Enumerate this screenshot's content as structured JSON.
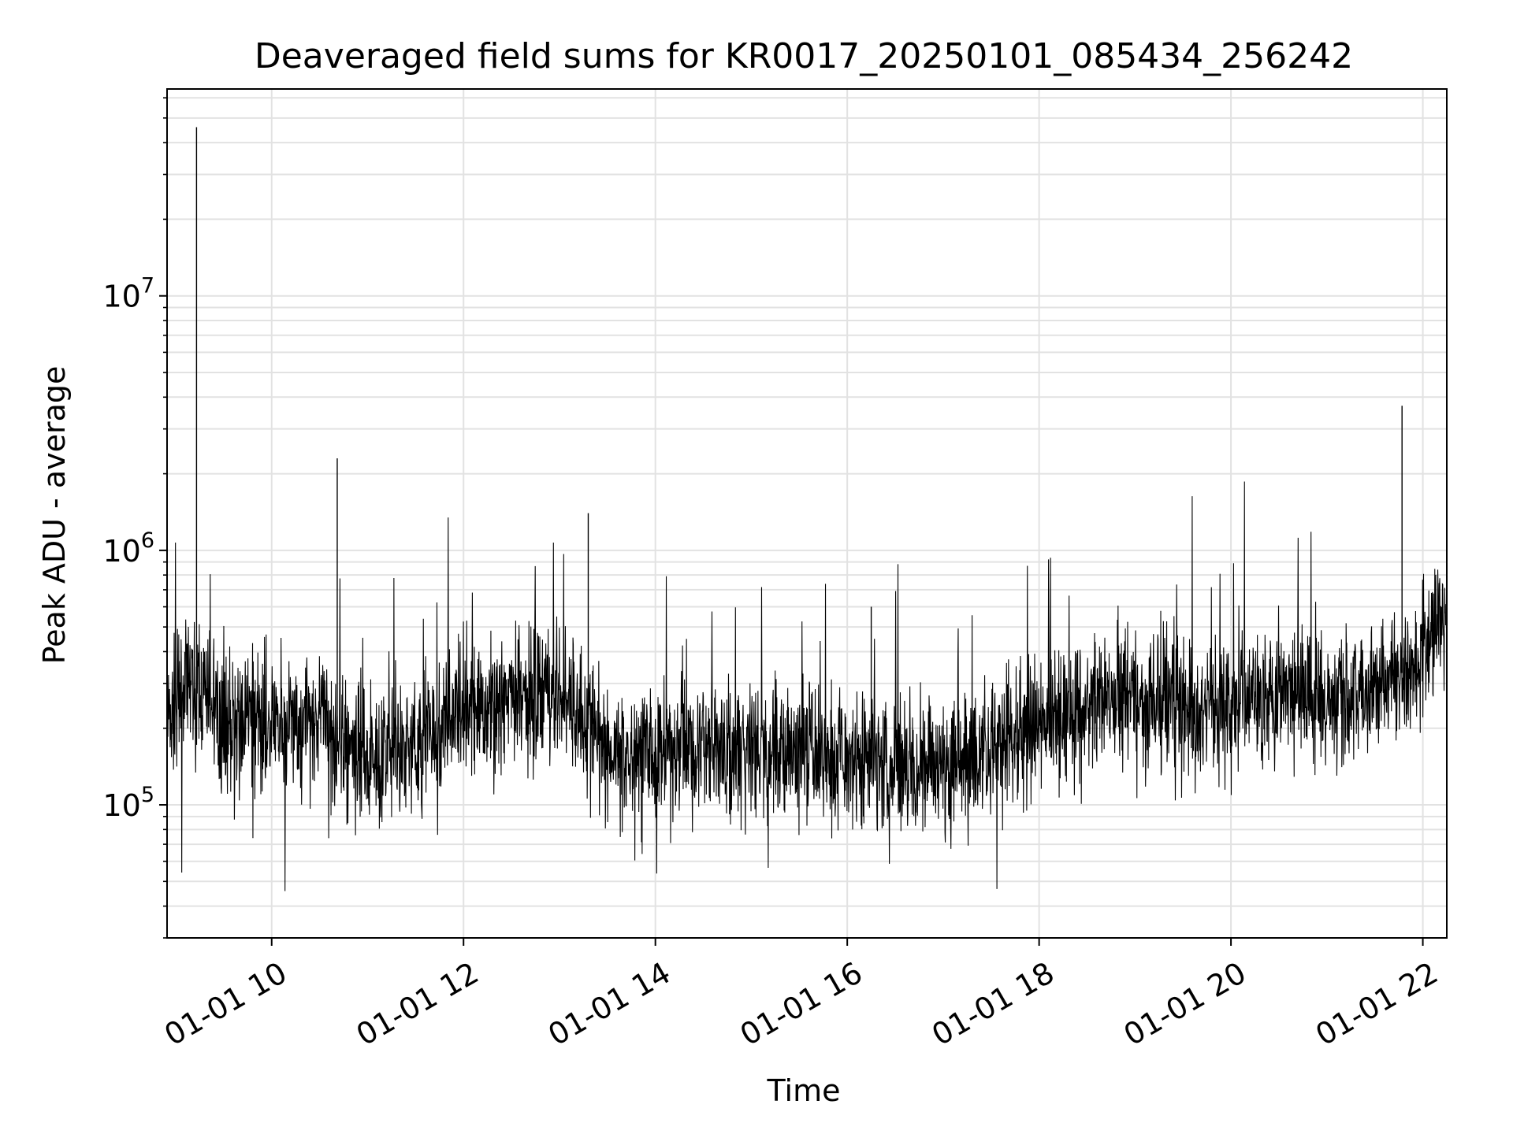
{
  "chart_data": {
    "type": "line",
    "title": "Deaveraged field sums for KR0017_20250101_085434_256242",
    "xlabel": "Time",
    "ylabel": "Peak ADU - average",
    "x_range": [
      "2025-01-01T08:54:34",
      "2025-01-01T22:15:00"
    ],
    "y_range": [
      30000,
      65000000
    ],
    "y_scale": "log",
    "grid": true,
    "line_color": "#000000",
    "x_ticks": [
      {
        "value": "2025-01-01T10:00:00",
        "label": "01-01 10"
      },
      {
        "value": "2025-01-01T12:00:00",
        "label": "01-01 12"
      },
      {
        "value": "2025-01-01T14:00:00",
        "label": "01-01 14"
      },
      {
        "value": "2025-01-01T16:00:00",
        "label": "01-01 16"
      },
      {
        "value": "2025-01-01T18:00:00",
        "label": "01-01 18"
      },
      {
        "value": "2025-01-01T20:00:00",
        "label": "01-01 20"
      },
      {
        "value": "2025-01-01T22:00:00",
        "label": "01-01 22"
      }
    ],
    "y_ticks": [
      {
        "value": 100000,
        "base": "10",
        "exp": "5"
      },
      {
        "value": 1000000,
        "base": "10",
        "exp": "6"
      },
      {
        "value": 10000000,
        "base": "10",
        "exp": "7"
      }
    ],
    "series": [
      {
        "x": [
          "2025-01-01T08:55:00",
          "2025-01-01T09:05:00",
          "2025-01-01T09:12:00",
          "2025-01-01T09:13:00",
          "2025-01-01T09:14:00",
          "2025-01-01T09:30:00",
          "2025-01-01T10:00:00",
          "2025-01-01T10:30:00",
          "2025-01-01T10:40:00",
          "2025-01-01T10:41:00",
          "2025-01-01T10:42:00",
          "2025-01-01T11:00:00",
          "2025-01-01T11:30:00",
          "2025-01-01T11:55:00",
          "2025-01-01T12:30:00",
          "2025-01-01T12:52:00",
          "2025-01-01T13:00:00",
          "2025-01-01T13:18:00",
          "2025-01-01T13:20:00",
          "2025-01-01T13:30:00",
          "2025-01-01T14:00:00",
          "2025-01-01T14:30:00",
          "2025-01-01T15:00:00",
          "2025-01-01T15:30:00",
          "2025-01-01T16:00:00",
          "2025-01-01T16:15:00",
          "2025-01-01T16:30:00",
          "2025-01-01T17:00:00",
          "2025-01-01T17:30:00",
          "2025-01-01T18:00:00",
          "2025-01-01T18:30:00",
          "2025-01-01T19:00:00",
          "2025-01-01T19:30:00",
          "2025-01-01T19:59:00",
          "2025-01-01T20:15:00",
          "2025-01-01T20:30:00",
          "2025-01-01T21:00:00",
          "2025-01-01T21:30:00",
          "2025-01-01T21:45:00",
          "2025-01-01T21:47:00",
          "2025-01-01T22:00:00",
          "2025-01-01T22:10:00"
        ],
        "y": [
          220000,
          250000,
          300000,
          46000000,
          280000,
          210000,
          210000,
          220000,
          190000,
          2300000,
          170000,
          160000,
          170000,
          230000,
          260000,
          280000,
          280000,
          1400000,
          220000,
          160000,
          160000,
          170000,
          160000,
          160000,
          150000,
          600000,
          150000,
          140000,
          170000,
          210000,
          250000,
          260000,
          240000,
          230000,
          290000,
          270000,
          260000,
          280000,
          320000,
          3700000,
          400000,
          550000
        ]
      }
    ]
  }
}
